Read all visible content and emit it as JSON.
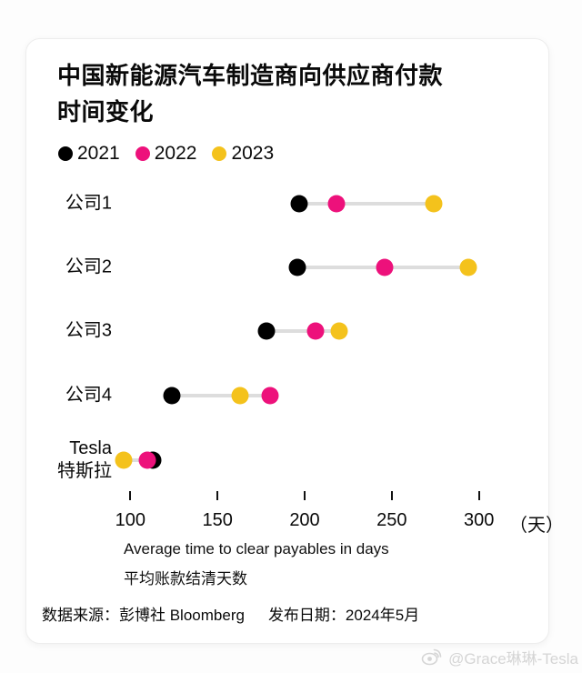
{
  "card": {
    "title_line1": "中国新能源汽车制造商向供应商付款",
    "title_line2": "时间变化"
  },
  "legend": {
    "items": [
      {
        "label": "2021",
        "color": "#000000"
      },
      {
        "label": "2022",
        "color": "#ED117B"
      },
      {
        "label": "2023",
        "color": "#F4C21C"
      }
    ]
  },
  "chart_data": {
    "type": "scatter",
    "subtype": "dumbbell-dot-plot",
    "title": "中国新能源汽车制造商向供应商付款时间变化",
    "categories": [
      "公司1",
      "公司2",
      "公司3",
      "公司4",
      "Tesla\n特斯拉"
    ],
    "series": [
      {
        "name": "2021",
        "color": "#000000",
        "z": 1,
        "values": [
          197,
          196,
          178,
          124,
          113
        ]
      },
      {
        "name": "2022",
        "color": "#ED117B",
        "z": 3,
        "values": [
          218,
          246,
          206,
          180,
          110
        ]
      },
      {
        "name": "2023",
        "color": "#F4C21C",
        "z": 2,
        "values": [
          274,
          294,
          220,
          163,
          96
        ]
      }
    ],
    "x_ticks": [
      100,
      150,
      200,
      250,
      300
    ],
    "x_unit": "（天）",
    "xlim": [
      100,
      300
    ],
    "xlabel_en": "Average time to clear payables in days",
    "xlabel_zh": "平均账款结清天数",
    "connector_color": "#DDDDDD",
    "legend_position": "top-left",
    "grid": false
  },
  "footer": {
    "source": "数据来源：彭博社 Bloomberg",
    "date": "发布日期：2024年5月"
  },
  "watermark": {
    "handle": "@Grace琳琳-Tesla"
  }
}
